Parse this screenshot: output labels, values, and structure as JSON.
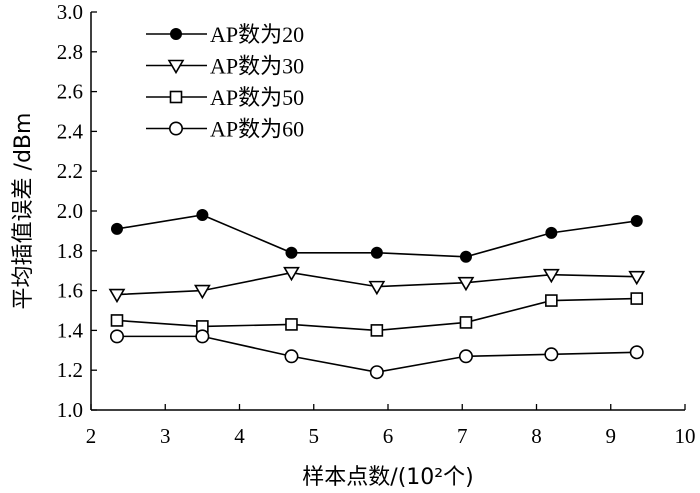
{
  "chart_data": {
    "type": "line",
    "xlabel": "样本点数/(10²个)",
    "ylabel": "平均插值误差 /dBm",
    "xlim": [
      2,
      10
    ],
    "ylim": [
      1.0,
      3.0
    ],
    "xticks": [
      "2",
      "3",
      "4",
      "5",
      "6",
      "7",
      "8",
      "9",
      "10"
    ],
    "yticks": [
      "1.0",
      "1.2",
      "1.4",
      "1.6",
      "1.8",
      "2.0",
      "2.2",
      "2.4",
      "2.6",
      "2.8",
      "3.0"
    ],
    "grid": false,
    "legend_position": "top-left",
    "x": [
      2.35,
      3.5,
      4.7,
      5.85,
      7.05,
      8.2,
      9.35
    ],
    "series": [
      {
        "name": "AP数为20",
        "marker": "filled-circle",
        "values": [
          1.91,
          1.98,
          1.79,
          1.79,
          1.77,
          1.89,
          1.95
        ]
      },
      {
        "name": "AP数为30",
        "marker": "triangle-down",
        "values": [
          1.58,
          1.6,
          1.69,
          1.62,
          1.64,
          1.68,
          1.67
        ]
      },
      {
        "name": "AP数为50",
        "marker": "square",
        "values": [
          1.45,
          1.42,
          1.43,
          1.4,
          1.44,
          1.55,
          1.56
        ]
      },
      {
        "name": "AP数为60",
        "marker": "open-circle",
        "values": [
          1.37,
          1.37,
          1.27,
          1.19,
          1.27,
          1.28,
          1.29
        ]
      }
    ]
  }
}
